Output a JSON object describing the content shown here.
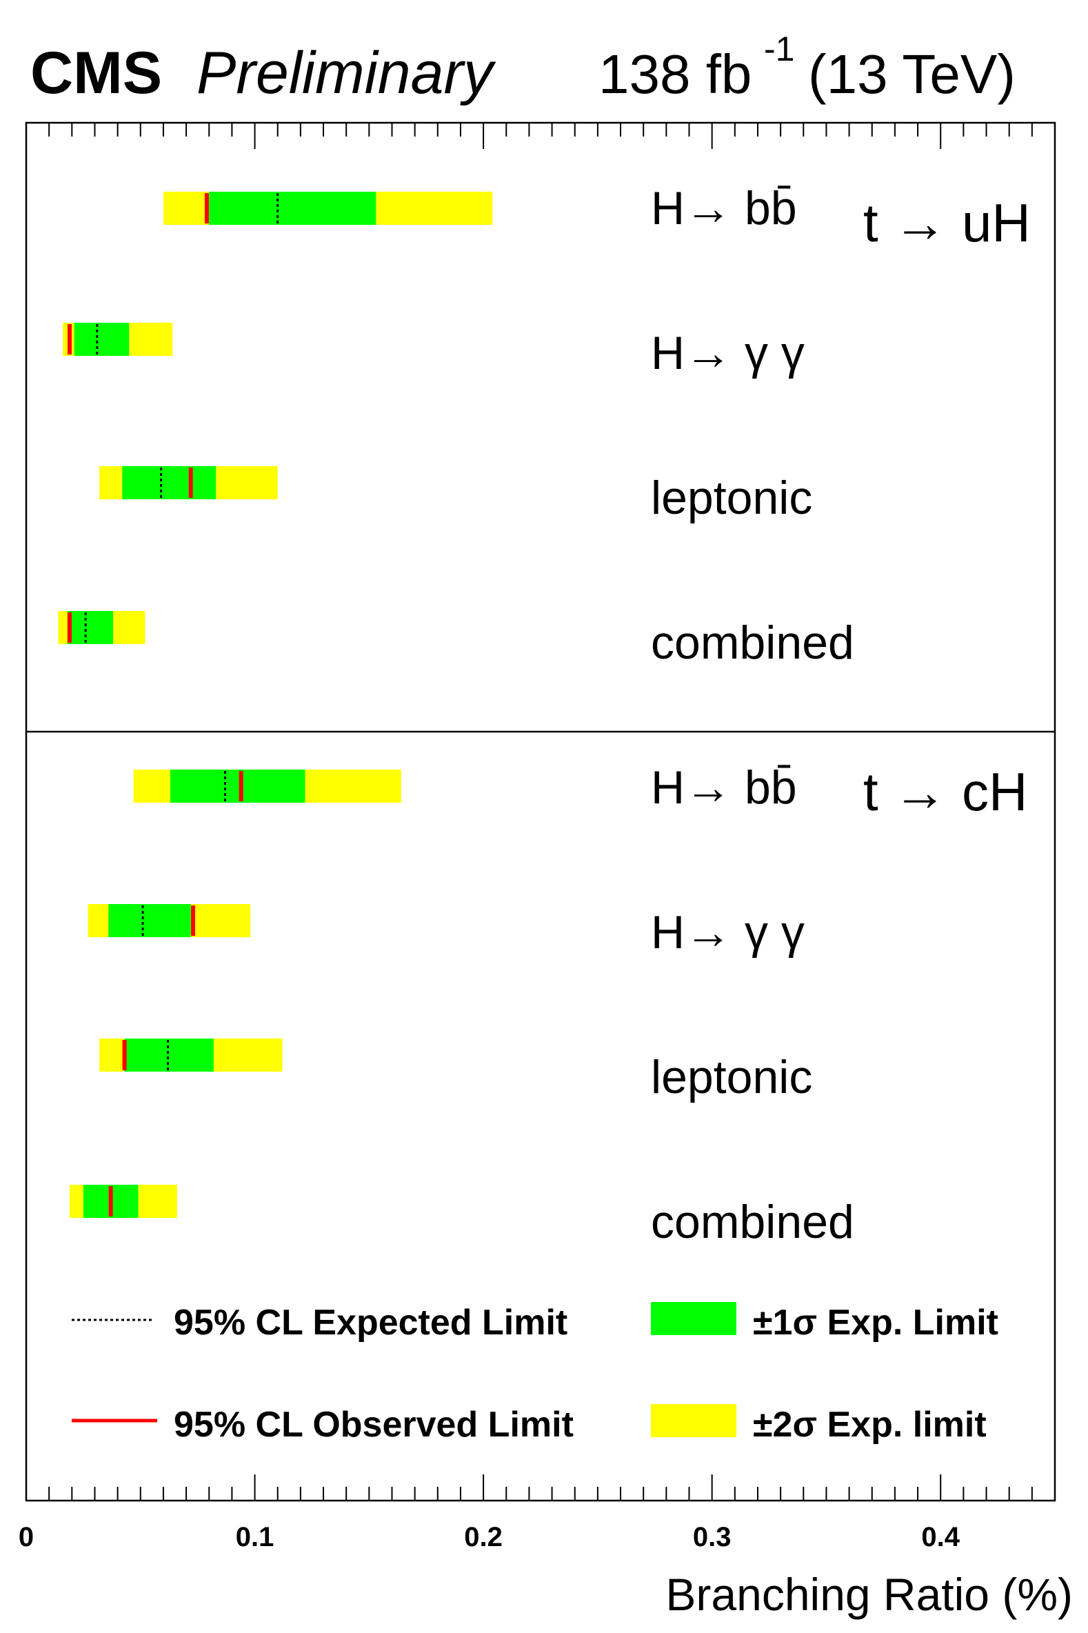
{
  "header": {
    "experiment": "CMS",
    "status": "Preliminary",
    "lumi": "138 fb",
    "lumi_exp": "-1",
    "energy": "(13 TeV)"
  },
  "chart_data": {
    "type": "bar",
    "orientation": "horizontal",
    "xlabel": "Branching Ratio (%)",
    "xlim": [
      0,
      0.45
    ],
    "xticks": [
      0,
      0.1,
      0.2,
      0.3,
      0.4
    ],
    "xtick_labels": [
      "0",
      "0.1",
      "0.2",
      "0.3",
      "0.4"
    ],
    "panels": [
      {
        "process": "t → uH",
        "rows": [
          {
            "label": "H→ bb̄",
            "expected": 0.11,
            "observed": 0.079,
            "sigma1": [
              0.08,
              0.153
            ],
            "sigma2": [
              0.06,
              0.204
            ]
          },
          {
            "label": "H→ γ γ",
            "expected": 0.031,
            "observed": 0.019,
            "sigma1": [
              0.021,
              0.045
            ],
            "sigma2": [
              0.016,
              0.064
            ]
          },
          {
            "label": "leptonic",
            "expected": 0.059,
            "observed": 0.072,
            "sigma1": [
              0.042,
              0.083
            ],
            "sigma2": [
              0.032,
              0.11
            ]
          },
          {
            "label": "combined",
            "expected": 0.026,
            "observed": 0.019,
            "sigma1": [
              0.018,
              0.038
            ],
            "sigma2": [
              0.014,
              0.052
            ]
          }
        ]
      },
      {
        "process": "t → cH",
        "rows": [
          {
            "label": "H→ bb̄",
            "expected": 0.087,
            "observed": 0.094,
            "sigma1": [
              0.063,
              0.122
            ],
            "sigma2": [
              0.047,
              0.164
            ]
          },
          {
            "label": "H→ γ γ",
            "expected": 0.051,
            "observed": 0.073,
            "sigma1": [
              0.036,
              0.072
            ],
            "sigma2": [
              0.027,
              0.098
            ]
          },
          {
            "label": "leptonic",
            "expected": 0.062,
            "observed": 0.043,
            "sigma1": [
              0.043,
              0.082
            ],
            "sigma2": [
              0.032,
              0.112
            ]
          },
          {
            "label": "combined",
            "expected": 0.037,
            "observed": 0.037,
            "sigma1": [
              0.025,
              0.049
            ],
            "sigma2": [
              0.019,
              0.066
            ]
          }
        ]
      }
    ],
    "legend": {
      "placement": "bottom",
      "entries": [
        {
          "label": "95% CL Expected Limit",
          "style": "dotted-line",
          "color": "#000000"
        },
        {
          "label": "±1σ Exp. Limit",
          "style": "box",
          "color": "#00ff00"
        },
        {
          "label": "95% CL Observed Limit",
          "style": "solid-line",
          "color": "#ff0000"
        },
        {
          "label": "±2σ Exp. limit",
          "style": "box",
          "color": "#ffff00"
        }
      ]
    },
    "colors": {
      "sigma1": "#00ff00",
      "sigma2": "#ffff00",
      "observed": "#ff0000",
      "expected": "#000000"
    },
    "grid": false
  }
}
